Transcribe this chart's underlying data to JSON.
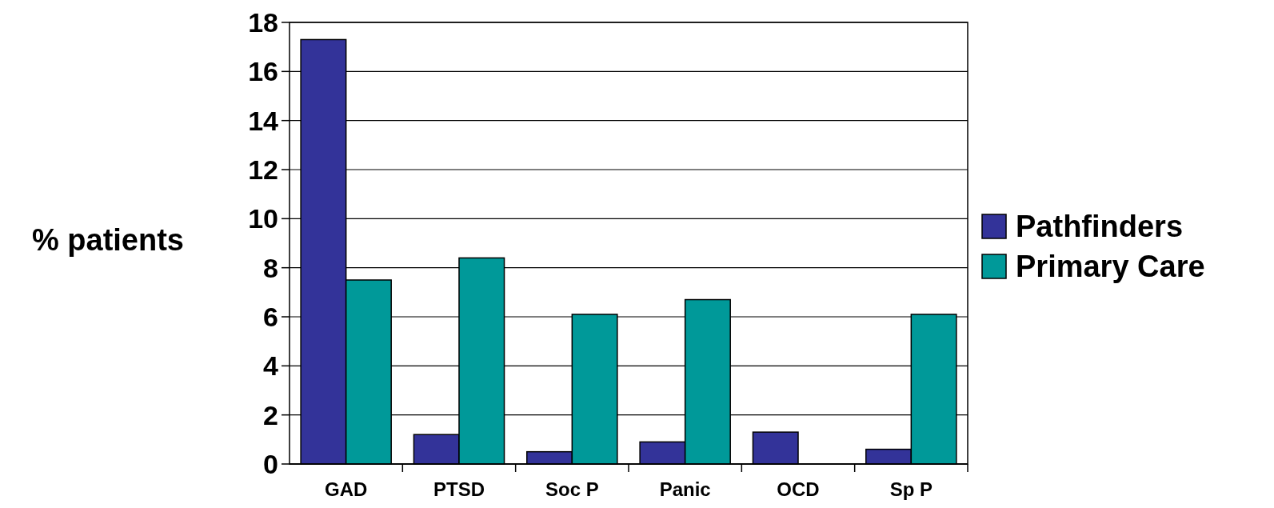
{
  "chart_data": {
    "type": "bar",
    "ylabel": "% patients",
    "categories": [
      "GAD",
      "PTSD",
      "Soc P",
      "Panic",
      "OCD",
      "Sp P"
    ],
    "series": [
      {
        "name": "Pathfinders",
        "color": "#333399",
        "values": [
          17.3,
          1.2,
          0.5,
          0.9,
          1.3,
          0.6
        ]
      },
      {
        "name": "Primary Care",
        "color": "#009999",
        "values": [
          7.5,
          8.4,
          6.1,
          6.7,
          0,
          6.1
        ]
      }
    ],
    "ylim": [
      0,
      18
    ],
    "yticks": [
      0,
      2,
      4,
      6,
      8,
      10,
      12,
      14,
      16,
      18
    ],
    "grid": "y",
    "legend": "right"
  }
}
